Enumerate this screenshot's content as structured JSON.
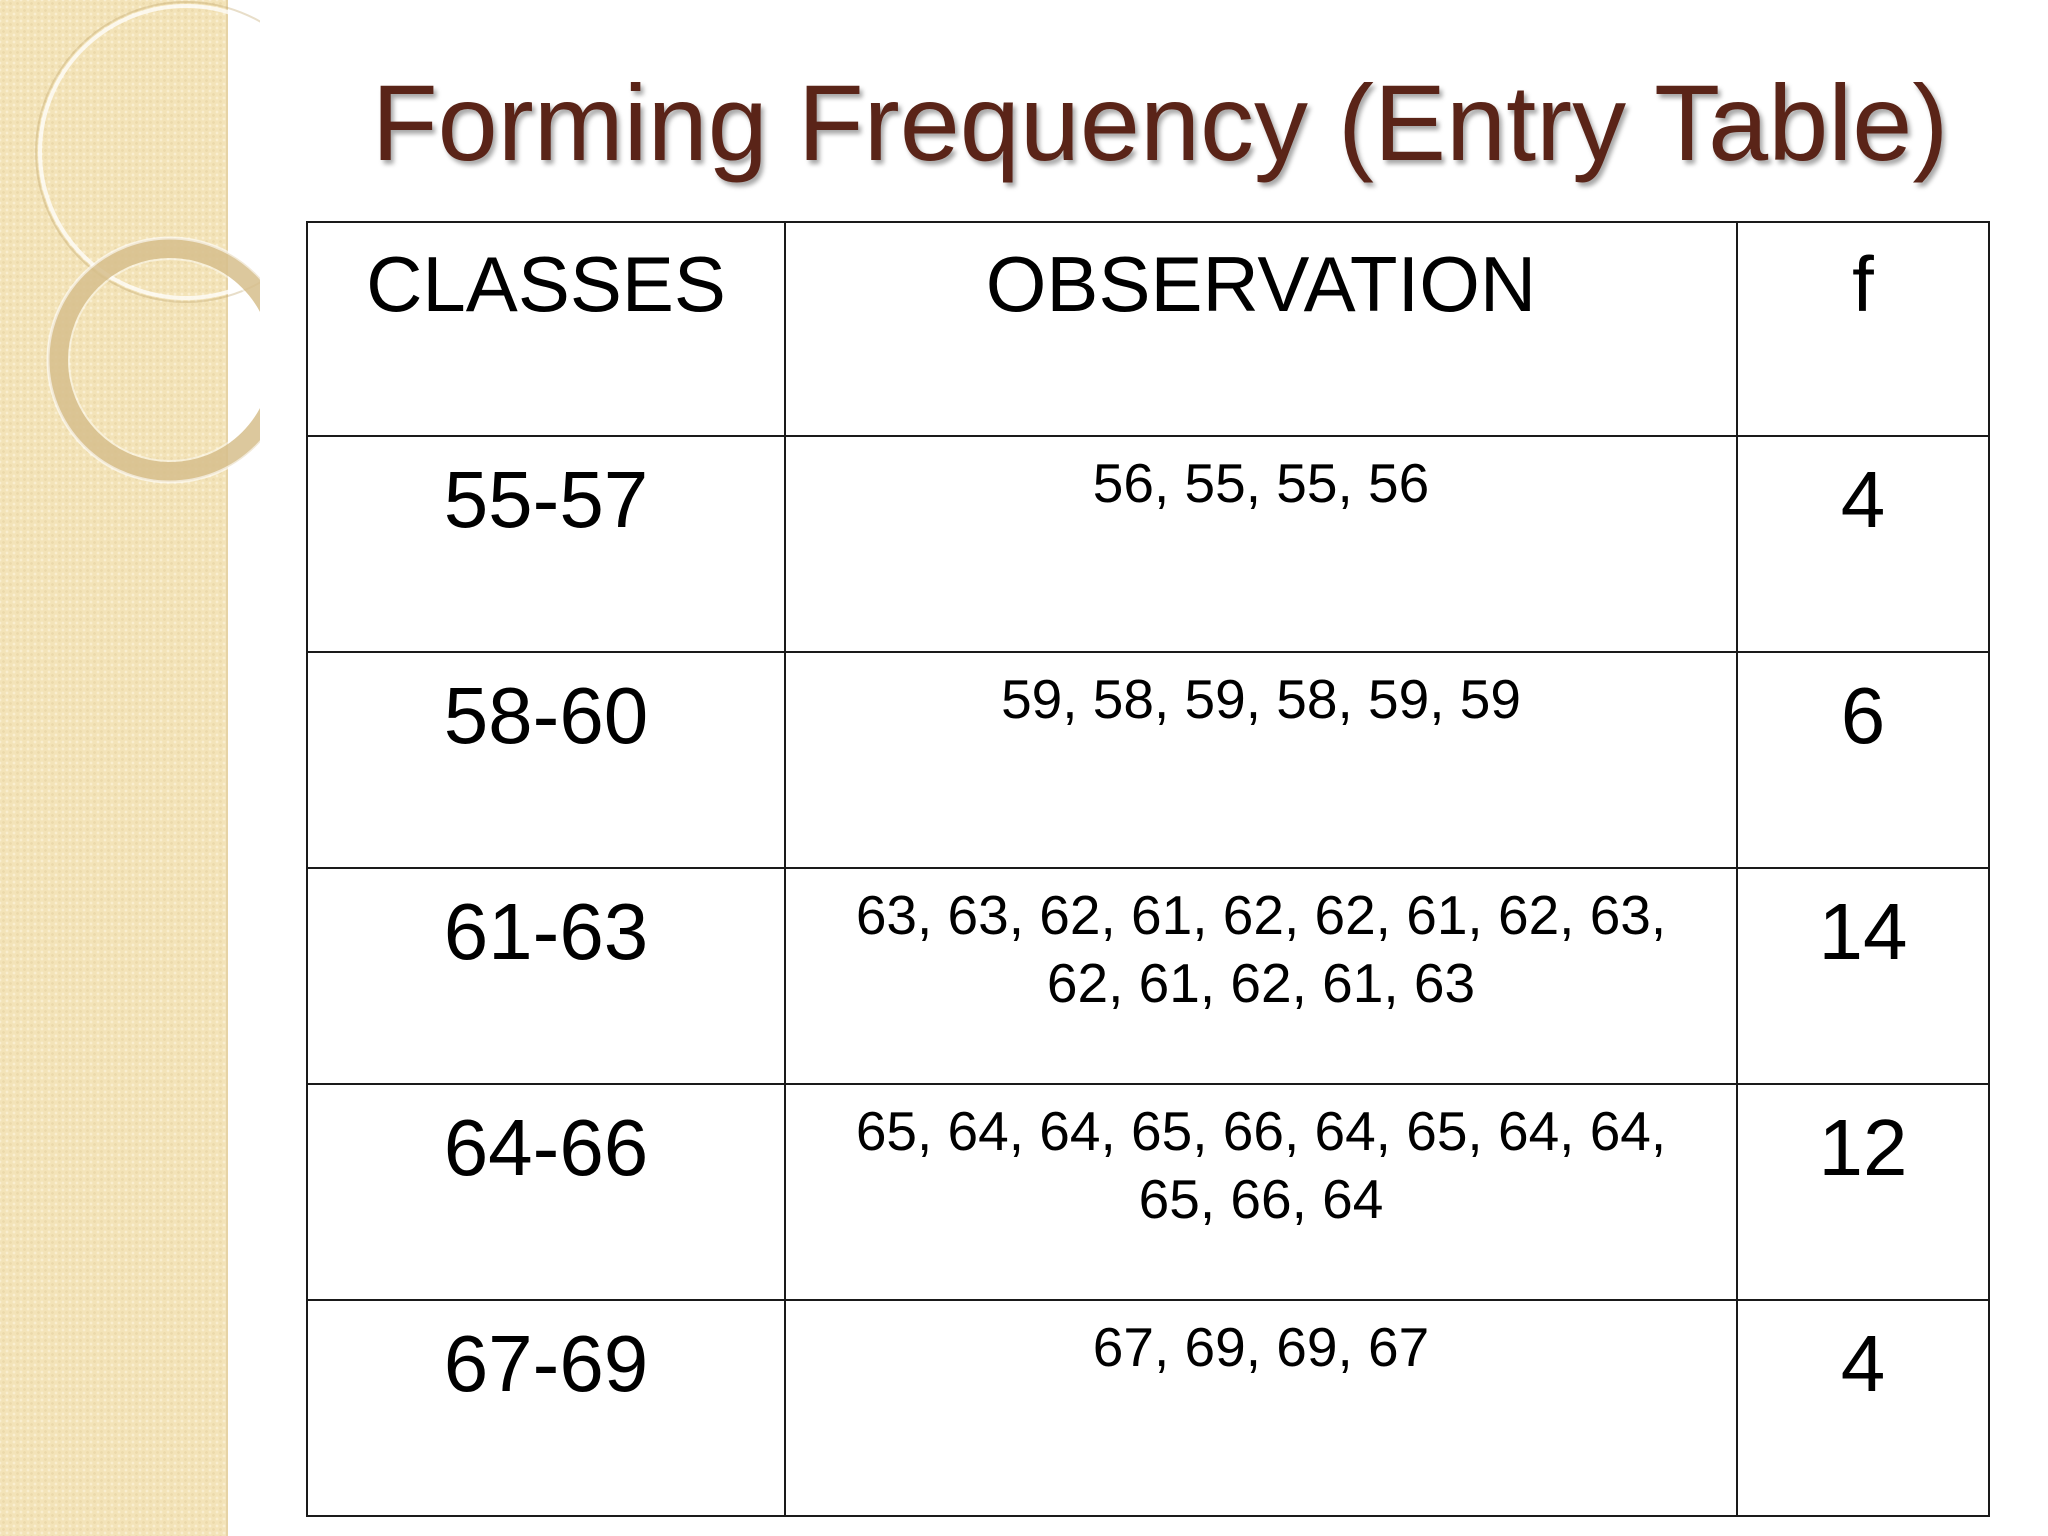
{
  "slide": {
    "title": "Forming Frequency (Entry Table)"
  },
  "table": {
    "headers": [
      "CLASSES",
      "OBSERVATION",
      "f"
    ],
    "rows": [
      {
        "class": "55-57",
        "observation": "56, 55, 55, 56",
        "f": "4"
      },
      {
        "class": "58-60",
        "observation": "59, 58, 59, 58, 59, 59",
        "f": "6"
      },
      {
        "class": "61-63",
        "observation": "63, 63, 62, 61, 62, 62, 61, 62, 63, 62, 61, 62, 61, 63",
        "f": "14"
      },
      {
        "class": "64-66",
        "observation": "65, 64, 64, 65, 66, 64, 65, 64, 64, 65, 66, 64",
        "f": "12"
      },
      {
        "class": "67-69",
        "observation": "67, 69, 69, 67",
        "f": "4"
      }
    ]
  },
  "colors": {
    "title": "#5a2418",
    "band": "#f3e3b8",
    "border": "#1a1a1a"
  }
}
